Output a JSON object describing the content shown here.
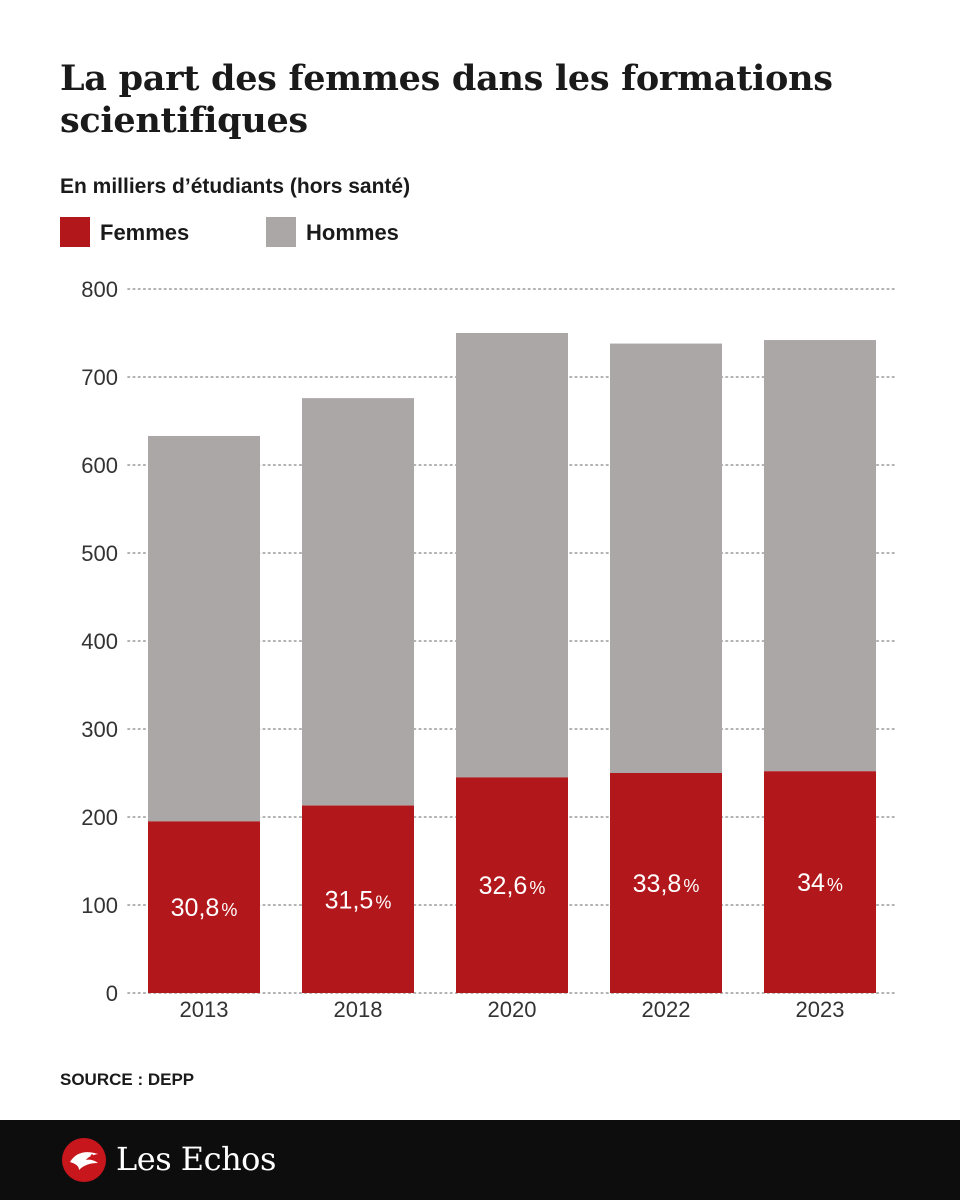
{
  "colors": {
    "femmes": "#b2181b",
    "hommes": "#aba7a7",
    "grid": "#9a9a9a",
    "text": "#1a1a1a",
    "footer": "#0d0d0d"
  },
  "brand": {
    "name": "Les Echos",
    "logo_icon": "echos-bird-icon"
  },
  "source": "SOURCE : DEPP",
  "chart_data": {
    "type": "bar",
    "stacked": true,
    "title": "La part des femmes dans les formations scientifiques",
    "subtitle": "En milliers d’étudiants (hors santé)",
    "categories": [
      "2013",
      "2018",
      "2020",
      "2022",
      "2023"
    ],
    "series": [
      {
        "name": "Femmes",
        "values": [
          195,
          213,
          245,
          250,
          252
        ],
        "labels": [
          {
            "value": "30,8",
            "unit": "%"
          },
          {
            "value": "31,5",
            "unit": "%"
          },
          {
            "value": "32,6",
            "unit": "%"
          },
          {
            "value": "33,8",
            "unit": "%"
          },
          {
            "value": "34",
            "unit": "%"
          }
        ]
      },
      {
        "name": "Hommes",
        "values": [
          438,
          463,
          505,
          488,
          490
        ]
      }
    ],
    "ylim": [
      0,
      800
    ],
    "yticks": [
      "0",
      "100",
      "200",
      "300",
      "400",
      "500",
      "600",
      "700",
      "800"
    ],
    "grid": true,
    "legend_position": "top-left"
  }
}
